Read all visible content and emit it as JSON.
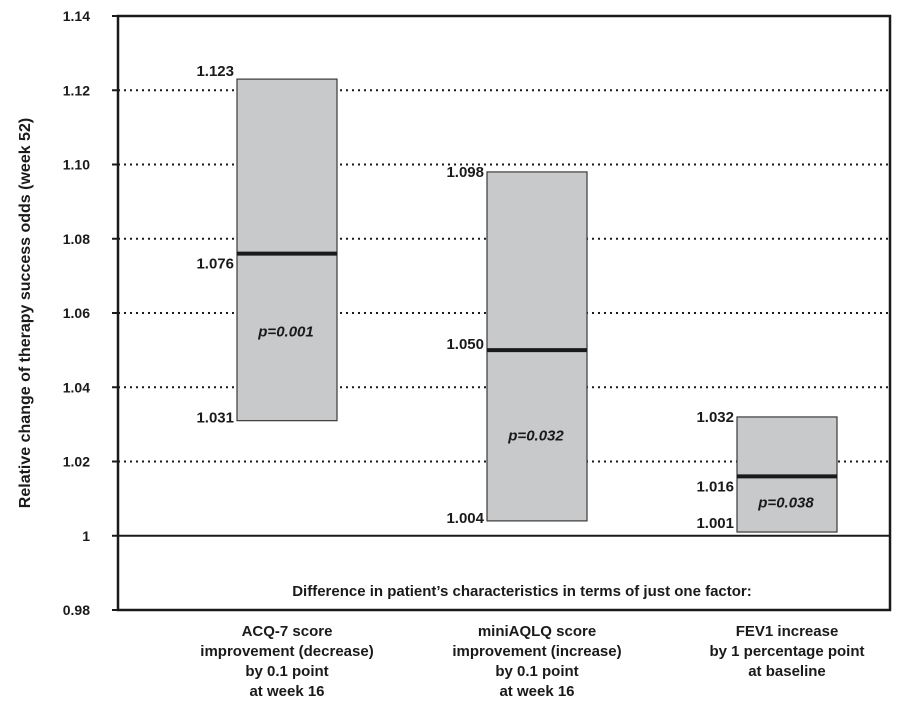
{
  "chart_data": {
    "type": "bar",
    "subtype": "floating-range",
    "ylabel": "Relative change of therapy success odds (week 52)",
    "ylim": [
      0.98,
      1.14
    ],
    "yticks": [
      {
        "value": 0.98,
        "label": "0.98"
      },
      {
        "value": 1.0,
        "label": "1"
      },
      {
        "value": 1.02,
        "label": "1.02"
      },
      {
        "value": 1.04,
        "label": "1.04"
      },
      {
        "value": 1.06,
        "label": "1.06"
      },
      {
        "value": 1.08,
        "label": "1.08"
      },
      {
        "value": 1.1,
        "label": "1.10"
      },
      {
        "value": 1.12,
        "label": "1.12"
      },
      {
        "value": 1.14,
        "label": "1.14"
      }
    ],
    "gridlines": [
      1.02,
      1.04,
      1.06,
      1.08,
      1.1,
      1.12
    ],
    "reference_line": 1.0,
    "group_title": "Difference in patient’s characteristics in terms of just one factor:",
    "categories": [
      {
        "label_lines": [
          "ACQ-7 score",
          "improvement (decrease)",
          "by 0.1 point",
          "at week 16"
        ],
        "low": 1.031,
        "mid": 1.076,
        "high": 1.123,
        "low_label": "1.031",
        "mid_label": "1.076",
        "high_label": "1.123",
        "p_label": "p=0.001",
        "p_value": 1.055
      },
      {
        "label_lines": [
          "miniAQLQ score",
          "improvement (increase)",
          "by 0.1 point",
          "at week 16"
        ],
        "low": 1.004,
        "mid": 1.05,
        "high": 1.098,
        "low_label": "1.004",
        "mid_label": "1.050",
        "high_label": "1.098",
        "p_label": "p=0.032",
        "p_value": 1.027
      },
      {
        "label_lines": [
          "FEV1 increase",
          "by 1 percentage point",
          "at baseline"
        ],
        "low": 1.001,
        "mid": 1.016,
        "high": 1.032,
        "low_label": "1.001",
        "mid_label": "1.016",
        "high_label": "1.032",
        "p_label": "p=0.038",
        "p_value": 1.009
      }
    ],
    "colors": {
      "box_fill": "#c8c9cb",
      "box_stroke": "#3a3a3a",
      "median": "#1a1a1a",
      "grid": "#1a1a1a",
      "axis": "#1a1a1a"
    }
  }
}
